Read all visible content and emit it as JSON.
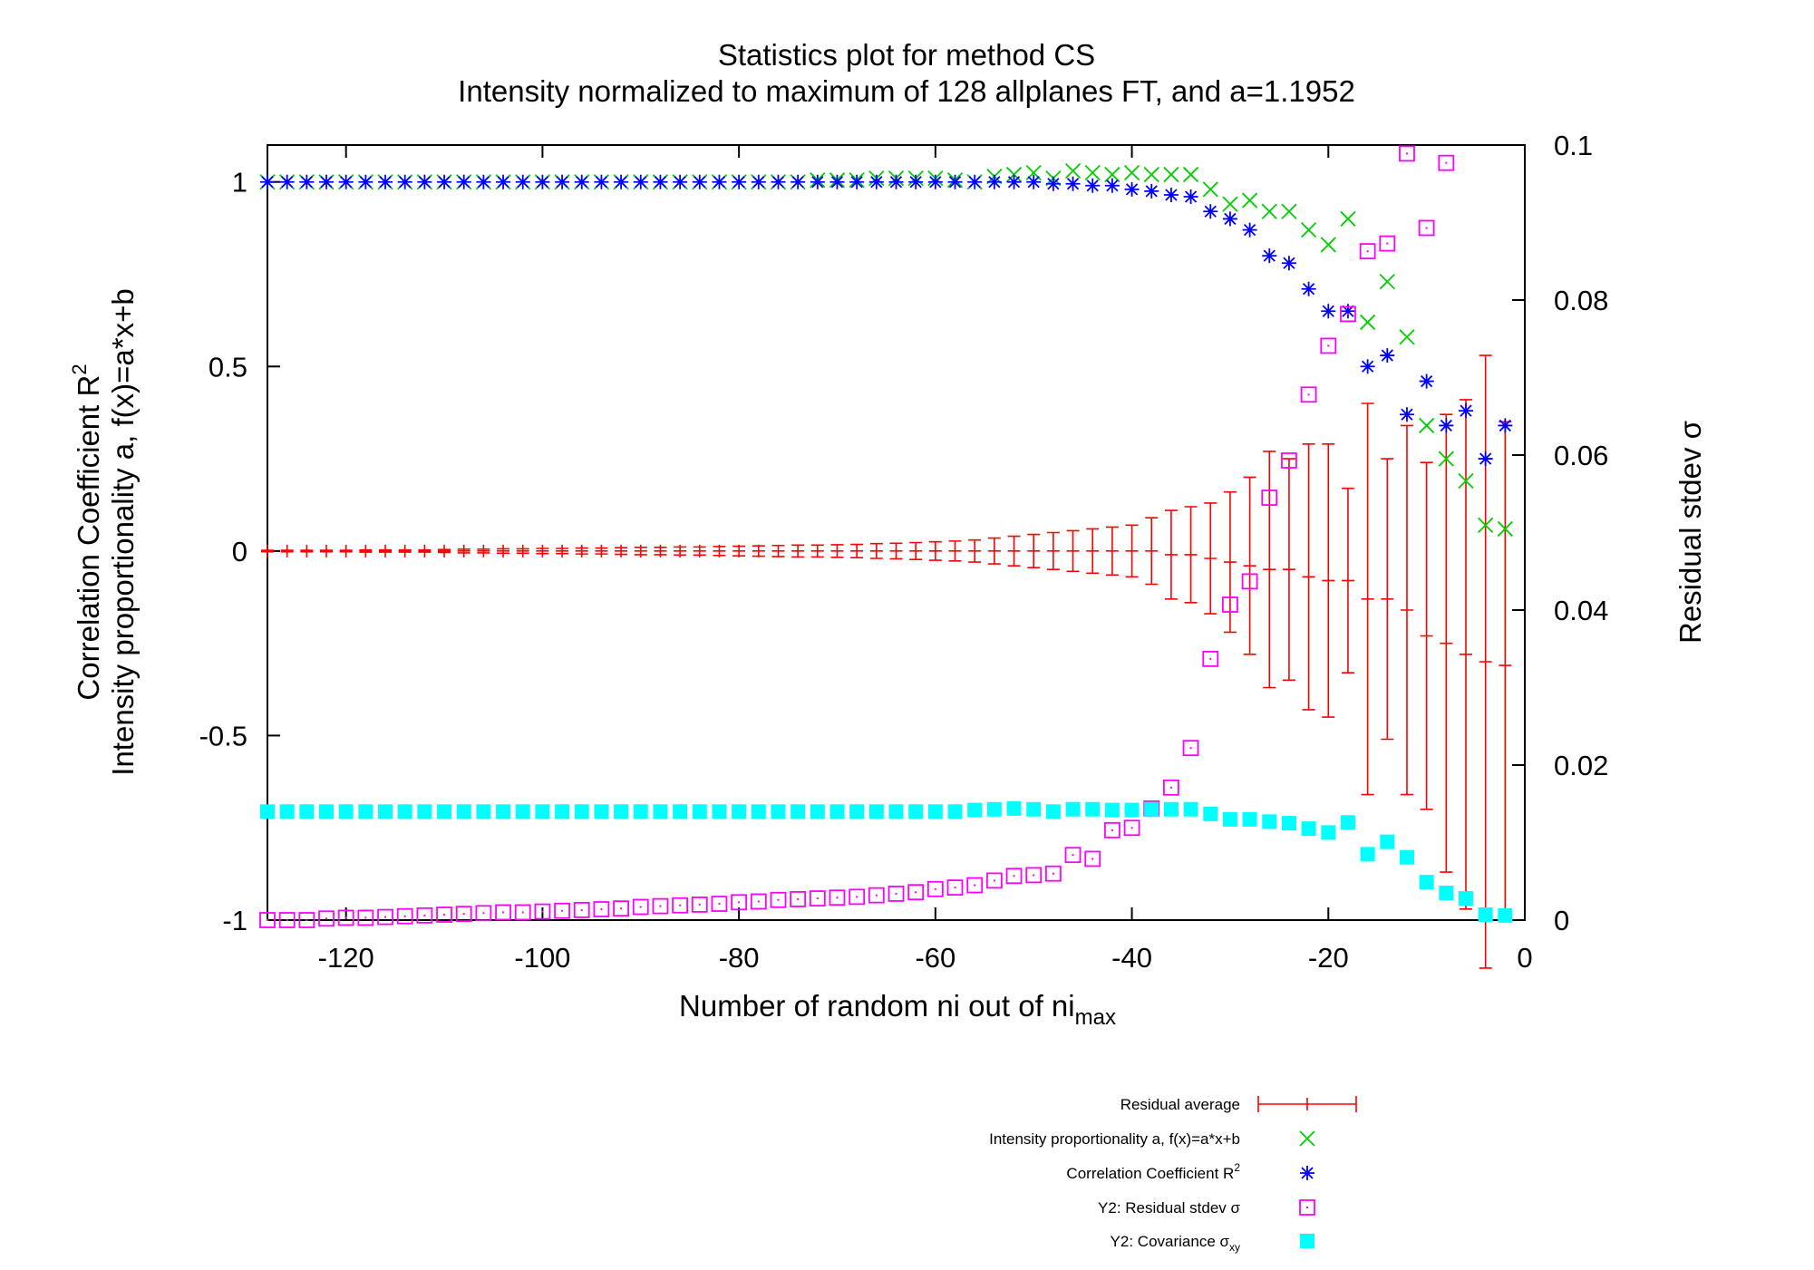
{
  "chart_data": {
    "type": "scatter",
    "title": "Statistics plot for method CS",
    "subtitle": "Intensity normalized to maximum of 128 allplanes FT, and a=1.1952",
    "xlabel": "Number of random ni out of ni",
    "xlabel_sub": "max",
    "ylabel_line1": "Correlation Coefficient R",
    "ylabel_line1_sup": "2",
    "ylabel_line2": "Intensity proportionality a, f(x)=a*x+b",
    "y2label": "Residual stdev σ",
    "xlim": [
      -128,
      0
    ],
    "ylim": [
      -1,
      1.1
    ],
    "y2lim": [
      0,
      0.1
    ],
    "grid": false,
    "legend_position": "bottom-center",
    "xticks": [
      -120,
      -100,
      -80,
      -60,
      -40,
      -20,
      0
    ],
    "xtick_labels": [
      "-120",
      "-100",
      "-80",
      "-60",
      "-40",
      "-20",
      "0"
    ],
    "yticks": [
      1,
      0.5,
      0,
      -0.5,
      -1
    ],
    "ytick_labels": [
      "1",
      "0.5",
      "0",
      "-0.5",
      "-1"
    ],
    "y2ticks": [
      0.1,
      0.08,
      0.06,
      0.04,
      0.02,
      0
    ],
    "y2tick_labels": [
      "0.1",
      "0.08",
      "0.06",
      "0.04",
      "0.02",
      "0"
    ],
    "series": [
      {
        "name": "Residual average",
        "axis": "y1",
        "marker": "errorbar",
        "color": "#ff0000",
        "x": [
          -128,
          -126,
          -124,
          -122,
          -120,
          -118,
          -116,
          -114,
          -112,
          -110,
          -108,
          -106,
          -104,
          -102,
          -100,
          -98,
          -96,
          -94,
          -92,
          -90,
          -88,
          -86,
          -84,
          -82,
          -80,
          -78,
          -76,
          -74,
          -72,
          -70,
          -68,
          -66,
          -64,
          -62,
          -60,
          -58,
          -56,
          -54,
          -52,
          -50,
          -48,
          -46,
          -44,
          -42,
          -40,
          -38,
          -36,
          -34,
          -32,
          -30,
          -28,
          -26,
          -24,
          -22,
          -20,
          -18,
          -16,
          -14,
          -12,
          -10,
          -8,
          -6,
          -4,
          -2
        ],
        "y": [
          0,
          0,
          0,
          0,
          0,
          0,
          0,
          0,
          0,
          0,
          0,
          0,
          0,
          0,
          0,
          0,
          0,
          0,
          0,
          0,
          0,
          0,
          0,
          0,
          0,
          0,
          0,
          0,
          0,
          0,
          0,
          0,
          0,
          0,
          0,
          0,
          0,
          0,
          0,
          0,
          0,
          0,
          0,
          0,
          0,
          0,
          -0.01,
          -0.01,
          -0.02,
          -0.03,
          -0.04,
          -0.05,
          -0.05,
          -0.07,
          -0.08,
          -0.08,
          -0.13,
          -0.13,
          -0.16,
          -0.23,
          -0.25,
          -0.28,
          -0.3,
          -0.31
        ],
        "err": [
          0.002,
          0.002,
          0.002,
          0.002,
          0.002,
          0.003,
          0.003,
          0.003,
          0.003,
          0.004,
          0.005,
          0.005,
          0.006,
          0.006,
          0.007,
          0.007,
          0.008,
          0.008,
          0.009,
          0.01,
          0.01,
          0.011,
          0.011,
          0.012,
          0.013,
          0.014,
          0.015,
          0.016,
          0.016,
          0.017,
          0.018,
          0.02,
          0.021,
          0.023,
          0.025,
          0.027,
          0.03,
          0.035,
          0.04,
          0.045,
          0.05,
          0.055,
          0.06,
          0.065,
          0.07,
          0.09,
          0.12,
          0.13,
          0.15,
          0.19,
          0.24,
          0.32,
          0.3,
          0.36,
          0.37,
          0.25,
          0.53,
          0.38,
          0.5,
          0.47,
          0.62,
          0.69,
          0.83,
          0.66
        ]
      },
      {
        "name": "Intensity proportionality a, f(x)=a*x+b",
        "axis": "y1",
        "marker": "x",
        "color": "#00d000",
        "x": [
          -128,
          -126,
          -124,
          -122,
          -120,
          -118,
          -116,
          -114,
          -112,
          -110,
          -108,
          -106,
          -104,
          -102,
          -100,
          -98,
          -96,
          -94,
          -92,
          -90,
          -88,
          -86,
          -84,
          -82,
          -80,
          -78,
          -76,
          -74,
          -72,
          -70,
          -68,
          -66,
          -64,
          -62,
          -60,
          -58,
          -56,
          -54,
          -52,
          -50,
          -48,
          -46,
          -44,
          -42,
          -40,
          -38,
          -36,
          -34,
          -32,
          -30,
          -28,
          -26,
          -24,
          -22,
          -20,
          -18,
          -16,
          -14,
          -12,
          -10,
          -8,
          -6,
          -4,
          -2
        ],
        "y": [
          1,
          1,
          1,
          1,
          1,
          1,
          1,
          1,
          1,
          1,
          1,
          1,
          1,
          1,
          1,
          1,
          1,
          1,
          1,
          1,
          1,
          1,
          1,
          1,
          1,
          1,
          1,
          1,
          1.005,
          1.005,
          1.005,
          1.01,
          1.01,
          1.01,
          1.01,
          1.005,
          1,
          1.015,
          1.02,
          1.025,
          1.01,
          1.03,
          1.025,
          1.02,
          1.025,
          1.02,
          1.02,
          1.02,
          0.98,
          0.94,
          0.95,
          0.92,
          0.92,
          0.87,
          0.83,
          0.9,
          0.62,
          0.73,
          0.58,
          0.34,
          0.25,
          0.19,
          0.07,
          0.06
        ]
      },
      {
        "name": "Correlation Coefficient R",
        "name_sup": "2",
        "axis": "y1",
        "marker": "asterisk",
        "color": "#0000ff",
        "x": [
          -128,
          -126,
          -124,
          -122,
          -120,
          -118,
          -116,
          -114,
          -112,
          -110,
          -108,
          -106,
          -104,
          -102,
          -100,
          -98,
          -96,
          -94,
          -92,
          -90,
          -88,
          -86,
          -84,
          -82,
          -80,
          -78,
          -76,
          -74,
          -72,
          -70,
          -68,
          -66,
          -64,
          -62,
          -60,
          -58,
          -56,
          -54,
          -52,
          -50,
          -48,
          -46,
          -44,
          -42,
          -40,
          -38,
          -36,
          -34,
          -32,
          -30,
          -28,
          -26,
          -24,
          -22,
          -20,
          -18,
          -16,
          -14,
          -12,
          -10,
          -8,
          -6,
          -4,
          -2
        ],
        "y": [
          1,
          1,
          1,
          1,
          1,
          1,
          1,
          1,
          1,
          1,
          1,
          1,
          1,
          1,
          1,
          1,
          1,
          1,
          1,
          1,
          1,
          1,
          1,
          1,
          1,
          1,
          1,
          1,
          1,
          1,
          1,
          1,
          1,
          1,
          1,
          1,
          1,
          1,
          1,
          1,
          0.995,
          0.995,
          0.99,
          0.99,
          0.98,
          0.975,
          0.965,
          0.96,
          0.92,
          0.9,
          0.87,
          0.8,
          0.78,
          0.71,
          0.65,
          0.65,
          0.5,
          0.53,
          0.37,
          0.46,
          0.34,
          0.38,
          0.25,
          0.34
        ]
      },
      {
        "name": "Y2: Residual stdev σ",
        "axis": "y2",
        "marker": "open-square",
        "color": "#ff00ff",
        "x": [
          -128,
          -126,
          -124,
          -122,
          -120,
          -118,
          -116,
          -114,
          -112,
          -110,
          -108,
          -106,
          -104,
          -102,
          -100,
          -98,
          -96,
          -94,
          -92,
          -90,
          -88,
          -86,
          -84,
          -82,
          -80,
          -78,
          -76,
          -74,
          -72,
          -70,
          -68,
          -66,
          -64,
          -62,
          -60,
          -58,
          -56,
          -54,
          -52,
          -50,
          -48,
          -46,
          -44,
          -42,
          -40,
          -38,
          -36,
          -34,
          -32,
          -30,
          -28,
          -26,
          -24,
          -22,
          -20,
          -18,
          -16,
          -14,
          -12,
          -10,
          -8
        ],
        "y": [
          0,
          0,
          0,
          0.0002,
          0.0003,
          0.0003,
          0.0004,
          0.0005,
          0.0006,
          0.0007,
          0.0008,
          0.0009,
          0.001,
          0.001,
          0.0011,
          0.0012,
          0.0013,
          0.0014,
          0.0015,
          0.0017,
          0.0018,
          0.0019,
          0.002,
          0.0021,
          0.0023,
          0.0024,
          0.0026,
          0.0027,
          0.0028,
          0.0029,
          0.003,
          0.0032,
          0.0034,
          0.0036,
          0.004,
          0.0042,
          0.0045,
          0.0051,
          0.0057,
          0.0058,
          0.006,
          0.0084,
          0.0079,
          0.0116,
          0.0119,
          0.0144,
          0.0171,
          0.0222,
          0.0337,
          0.0407,
          0.0437,
          0.0545,
          0.0593,
          0.0678,
          0.0741,
          0.0782,
          0.0863,
          0.0873,
          0.0989,
          0.0893,
          0.0977
        ]
      },
      {
        "name": "Y2: Covariance σ",
        "name_sub": "xy",
        "axis": "y2",
        "marker": "filled-square",
        "color": "#00ffff",
        "x": [
          -128,
          -126,
          -124,
          -122,
          -120,
          -118,
          -116,
          -114,
          -112,
          -110,
          -108,
          -106,
          -104,
          -102,
          -100,
          -98,
          -96,
          -94,
          -92,
          -90,
          -88,
          -86,
          -84,
          -82,
          -80,
          -78,
          -76,
          -74,
          -72,
          -70,
          -68,
          -66,
          -64,
          -62,
          -60,
          -58,
          -56,
          -54,
          -52,
          -50,
          -48,
          -46,
          -44,
          -42,
          -40,
          -38,
          -36,
          -34,
          -32,
          -30,
          -28,
          -26,
          -24,
          -22,
          -20,
          -18,
          -16,
          -14,
          -12,
          -10,
          -8,
          -6,
          -4,
          -2
        ],
        "y": [
          0.014,
          0.014,
          0.014,
          0.014,
          0.014,
          0.014,
          0.014,
          0.014,
          0.014,
          0.014,
          0.014,
          0.014,
          0.014,
          0.014,
          0.014,
          0.014,
          0.014,
          0.014,
          0.014,
          0.014,
          0.014,
          0.014,
          0.014,
          0.014,
          0.014,
          0.014,
          0.014,
          0.014,
          0.014,
          0.014,
          0.014,
          0.014,
          0.014,
          0.014,
          0.014,
          0.014,
          0.0142,
          0.0143,
          0.0144,
          0.0143,
          0.014,
          0.0143,
          0.0143,
          0.0142,
          0.0142,
          0.0143,
          0.0143,
          0.0143,
          0.0137,
          0.013,
          0.013,
          0.0127,
          0.0125,
          0.0118,
          0.0113,
          0.0126,
          0.0085,
          0.0101,
          0.0081,
          0.0049,
          0.0035,
          0.0028,
          0.0007,
          0.0006
        ]
      }
    ]
  }
}
